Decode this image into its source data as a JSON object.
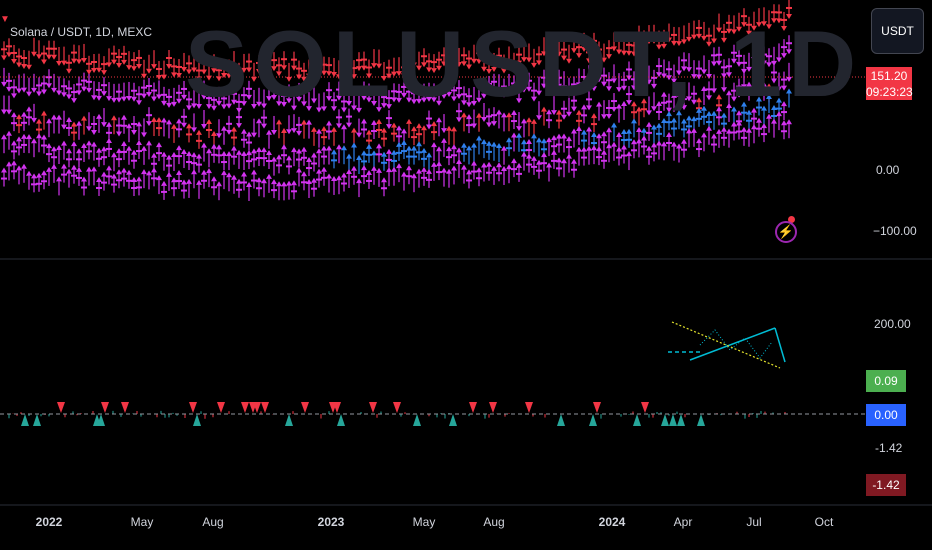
{
  "header": {
    "symbol": "Solana / USDT, 1D, MEXC",
    "watermark": "SOLUSDT, 1D",
    "currency_button": "USDT"
  },
  "price_axis": {
    "current_price": "151.20",
    "countdown": "09:23:23",
    "zero": "0.00",
    "neg100": "−100.00"
  },
  "indicator_axis": {
    "top": "200.00",
    "green_tag": "0.09",
    "blue_tag": "0.00",
    "plain": "-1.42",
    "red_tag": "-1.42"
  },
  "time_axis": [
    "2022",
    "May",
    "Aug",
    "2023",
    "May",
    "Aug",
    "2024",
    "Apr",
    "Jul",
    "Oct"
  ],
  "colors": {
    "magenta": "#d233ef",
    "red": "#f23645",
    "blue": "#2f80ed",
    "teal": "#26a69a",
    "cyan": "#00bcd4",
    "yellow": "#e5e52d"
  },
  "alert_icon": "lightning-bolt-icon"
}
